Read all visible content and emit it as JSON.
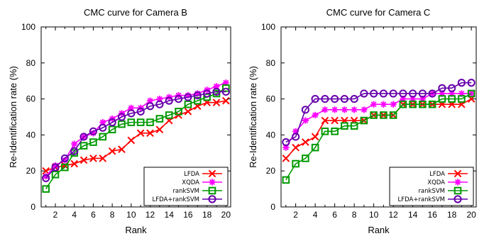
{
  "chart_data": [
    {
      "type": "line",
      "title": "CMC curve for Camera B",
      "xlabel": "Rank",
      "ylabel": "Re-Identification rate (%)",
      "xlim": [
        0.5,
        20.5
      ],
      "ylim": [
        0,
        100
      ],
      "xticks": [
        2,
        4,
        6,
        8,
        10,
        12,
        14,
        16,
        18,
        20
      ],
      "yticks": [
        0,
        20,
        40,
        60,
        80,
        100
      ],
      "legend_position": "bottom-right",
      "x": [
        1,
        2,
        3,
        4,
        5,
        6,
        7,
        8,
        9,
        10,
        11,
        12,
        13,
        14,
        15,
        16,
        17,
        18,
        19,
        20
      ],
      "series": [
        {
          "name": "LFDA",
          "color": "#ff0000",
          "marker": "x",
          "values": [
            20,
            22,
            23,
            24,
            26,
            27,
            27,
            31,
            32,
            37,
            41,
            41,
            43,
            48,
            51,
            53,
            56,
            58,
            58,
            59
          ]
        },
        {
          "name": "XQDA",
          "color": "#ff00ff",
          "marker": "asterisk",
          "values": [
            17,
            23,
            26,
            35,
            39,
            41,
            47,
            49,
            52,
            55,
            55,
            59,
            60,
            61,
            62,
            62,
            63,
            65,
            67,
            69
          ]
        },
        {
          "name": "rankSVM",
          "color": "#009900",
          "marker": "square",
          "values": [
            10,
            18,
            22,
            30,
            34,
            36,
            39,
            43,
            46,
            47,
            47,
            47,
            49,
            51,
            53,
            57,
            59,
            61,
            63,
            66
          ]
        },
        {
          "name": "LFDA+rankSVM",
          "color": "#6600aa",
          "marker": "circle",
          "values": [
            16,
            22,
            27,
            31,
            39,
            42,
            44,
            47,
            50,
            52,
            53,
            56,
            57,
            59,
            60,
            61,
            62,
            63,
            64,
            64
          ]
        }
      ]
    },
    {
      "type": "line",
      "title": "CMC curve for Camera C",
      "xlabel": "Rank",
      "ylabel": "Re-Identification rate (%)",
      "xlim": [
        0.5,
        20.5
      ],
      "ylim": [
        0,
        100
      ],
      "xticks": [
        2,
        4,
        6,
        8,
        10,
        12,
        14,
        16,
        18,
        20
      ],
      "yticks": [
        0,
        20,
        40,
        60,
        80,
        100
      ],
      "legend_position": "bottom-right",
      "x": [
        1,
        2,
        3,
        4,
        5,
        6,
        7,
        8,
        9,
        10,
        11,
        12,
        13,
        14,
        15,
        16,
        17,
        18,
        19,
        20
      ],
      "series": [
        {
          "name": "LFDA",
          "color": "#ff0000",
          "marker": "x",
          "values": [
            27,
            33,
            36,
            39,
            48,
            48,
            48,
            48,
            48,
            51,
            51,
            51,
            57,
            57,
            57,
            57,
            57,
            57,
            57,
            60
          ]
        },
        {
          "name": "XQDA",
          "color": "#ff00ff",
          "marker": "asterisk",
          "values": [
            33,
            42,
            48,
            51,
            54,
            54,
            54,
            54,
            54,
            57,
            57,
            57,
            60,
            60,
            60,
            63,
            63,
            63,
            63,
            63
          ]
        },
        {
          "name": "rankSVM",
          "color": "#009900",
          "marker": "square",
          "values": [
            15,
            24,
            27,
            33,
            42,
            42,
            45,
            45,
            48,
            51,
            51,
            51,
            57,
            57,
            57,
            57,
            60,
            60,
            60,
            63
          ]
        },
        {
          "name": "LFDA+rankSVM",
          "color": "#6600aa",
          "marker": "circle",
          "values": [
            36,
            39,
            54,
            60,
            60,
            60,
            60,
            60,
            63,
            63,
            63,
            63,
            63,
            63,
            63,
            63,
            66,
            66,
            69,
            69
          ]
        }
      ]
    }
  ]
}
